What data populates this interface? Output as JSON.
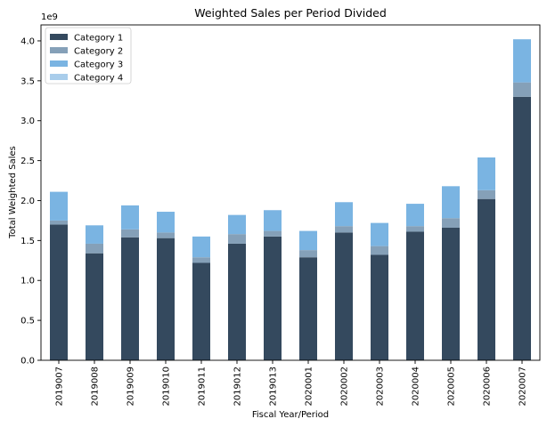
{
  "chart_data": {
    "type": "bar",
    "stacked": true,
    "title": "Weighted Sales per Period Divided",
    "xlabel": "Fiscal Year/Period",
    "ylabel": "Total Weighted Sales",
    "y_multiplier_label": "1e9",
    "ylim": [
      0,
      4.2
    ],
    "yticks": [
      0.0,
      0.5,
      1.0,
      1.5,
      2.0,
      2.5,
      3.0,
      3.5,
      4.0
    ],
    "ytick_labels": [
      "0.0",
      "0.5",
      "1.0",
      "1.5",
      "2.0",
      "2.5",
      "3.0",
      "3.5",
      "4.0"
    ],
    "grid": false,
    "legend_position": "top-left",
    "categories": [
      "2019007",
      "2019008",
      "2019009",
      "2019010",
      "2019011",
      "2019012",
      "2019013",
      "2020001",
      "2020002",
      "2020003",
      "2020004",
      "2020005",
      "2020006",
      "2020007"
    ],
    "series": [
      {
        "name": "Category 1",
        "color": "#34495e",
        "values": [
          1.7,
          1.34,
          1.54,
          1.53,
          1.22,
          1.46,
          1.55,
          1.29,
          1.6,
          1.32,
          1.61,
          1.66,
          2.02,
          3.3
        ]
      },
      {
        "name": "Category 2",
        "color": "#85a0b8",
        "values": [
          0.05,
          0.12,
          0.1,
          0.07,
          0.07,
          0.12,
          0.07,
          0.09,
          0.08,
          0.11,
          0.07,
          0.12,
          0.11,
          0.18
        ]
      },
      {
        "name": "Category 3",
        "color": "#7ab4e2",
        "values": [
          0.36,
          0.23,
          0.3,
          0.26,
          0.26,
          0.24,
          0.26,
          0.24,
          0.3,
          0.29,
          0.28,
          0.4,
          0.41,
          0.54
        ]
      },
      {
        "name": "Category 4",
        "color": "#a9cdeb",
        "values": [
          0,
          0,
          0,
          0,
          0,
          0,
          0,
          0,
          0,
          0,
          0,
          0,
          0,
          0
        ]
      }
    ]
  }
}
